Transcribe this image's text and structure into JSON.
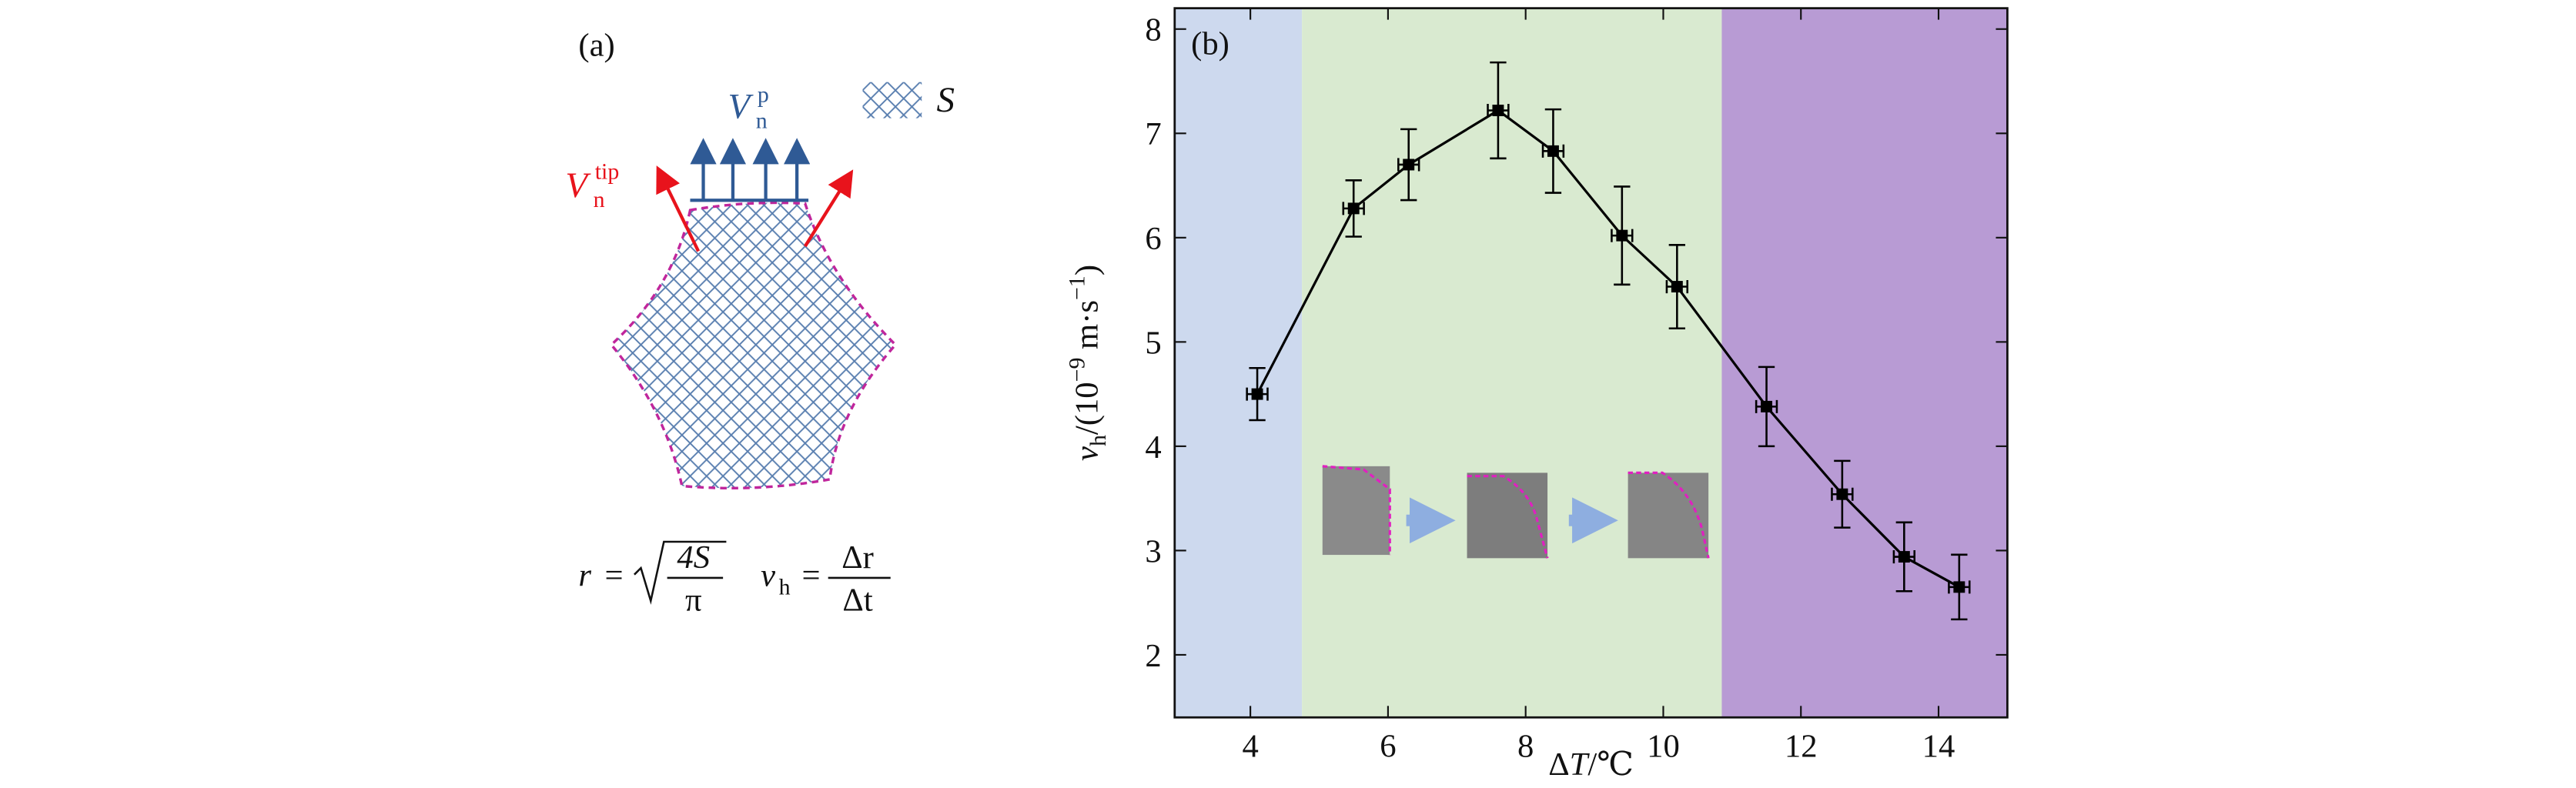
{
  "panel_a": {
    "label": "(a)",
    "vp": {
      "base": "V",
      "sub": "n",
      "sup": "p"
    },
    "vtip": {
      "base": "V",
      "sub": "n",
      "sup": "tip"
    },
    "area": "S",
    "eq1": {
      "lhs": "r",
      "op": "=",
      "num": "4S",
      "den": "π"
    },
    "eq2": {
      "lhs": "v",
      "lhs_sub": "h",
      "op": "=",
      "num": "Δr",
      "den": "Δt"
    }
  },
  "chart_data": {
    "type": "line",
    "panel_label": "(b)",
    "x": [
      4.1,
      5.5,
      6.3,
      7.6,
      8.4,
      9.4,
      10.2,
      11.5,
      12.6,
      13.5,
      14.3
    ],
    "series": [
      {
        "color": "#000000",
        "values": [
          4.5,
          6.28,
          6.7,
          7.22,
          6.83,
          6.02,
          5.53,
          4.38,
          3.54,
          2.94,
          2.65
        ],
        "errors": [
          0.25,
          0.27,
          0.34,
          0.46,
          0.4,
          0.47,
          0.4,
          0.38,
          0.32,
          0.33,
          0.31
        ],
        "xerrors": [
          0.15,
          0.15,
          0.15,
          0.15,
          0.15,
          0.15,
          0.15,
          0.15,
          0.15,
          0.15,
          0.15
        ]
      }
    ],
    "xlim": [
      2.9,
      15.0
    ],
    "ylim": [
      1.4,
      8.2
    ],
    "xticks": [
      4,
      6,
      8,
      10,
      12,
      14
    ],
    "yticks": [
      2,
      3,
      4,
      5,
      6,
      7,
      8
    ],
    "xlabel": [
      {
        "text": "Δ"
      },
      {
        "text": "T",
        "style": "italic"
      },
      {
        "text": "/℃"
      }
    ],
    "ylabel": [
      {
        "text": "v",
        "style": "italic"
      },
      {
        "text": "h",
        "style": "sub"
      },
      {
        "text": "/(10"
      },
      {
        "text": "−9",
        "style": "sup"
      },
      {
        "text": " m·s"
      },
      {
        "text": "−1",
        "style": "sup"
      },
      {
        "text": ")"
      }
    ],
    "regions": [
      {
        "from": 2.9,
        "to": 4.75,
        "color": "#cdd9ee"
      },
      {
        "from": 4.75,
        "to": 10.85,
        "color": "#d9ead0"
      },
      {
        "from": 10.85,
        "to": 15.0,
        "color": "#b89bd4"
      }
    ]
  }
}
